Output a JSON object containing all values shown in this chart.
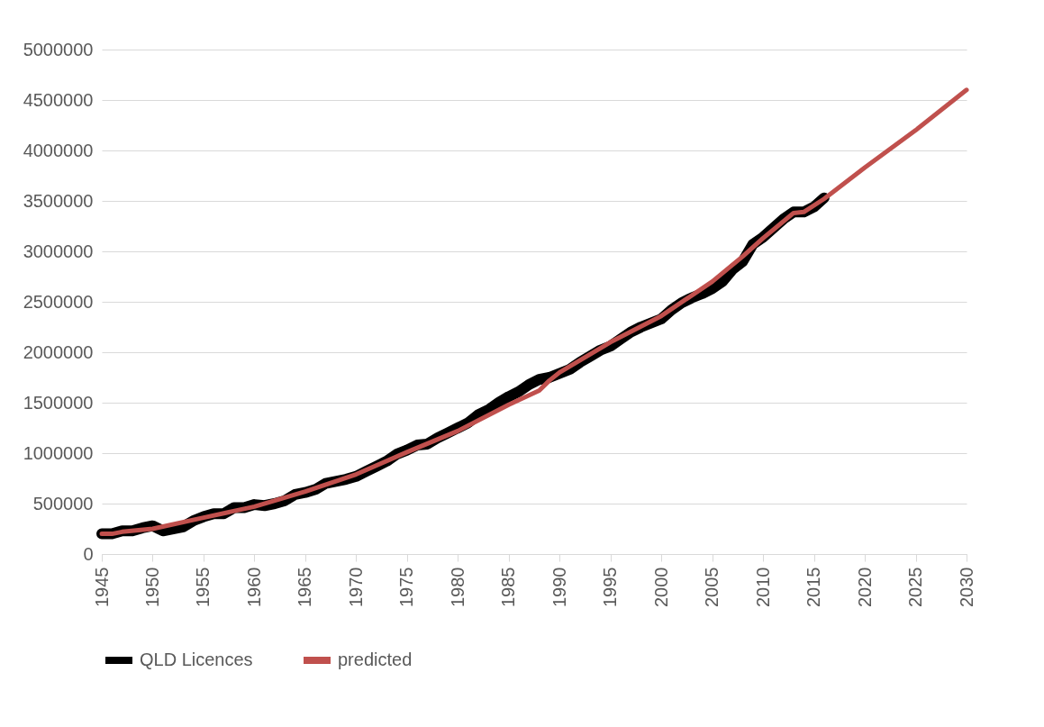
{
  "chart_data": {
    "type": "line",
    "xlim": [
      1945,
      2030
    ],
    "xticks": [
      1945,
      1950,
      1955,
      1960,
      1965,
      1970,
      1975,
      1980,
      1985,
      1990,
      1995,
      2000,
      2005,
      2010,
      2015,
      2020,
      2025,
      2030
    ],
    "ylim": [
      0,
      5000000
    ],
    "yticks": [
      0,
      500000,
      1000000,
      1500000,
      2000000,
      2500000,
      3000000,
      3500000,
      4000000,
      4500000,
      5000000
    ],
    "grid": "y",
    "legend": "bottom",
    "marker": "none",
    "line_style": "solid",
    "series": [
      {
        "name": "QLD Licences",
        "color": "#000000",
        "x": [
          1945,
          1946,
          1947,
          1948,
          1949,
          1950,
          1951,
          1952,
          1953,
          1954,
          1955,
          1956,
          1957,
          1958,
          1959,
          1960,
          1961,
          1962,
          1963,
          1964,
          1965,
          1966,
          1967,
          1968,
          1969,
          1970,
          1971,
          1972,
          1973,
          1974,
          1975,
          1976,
          1977,
          1978,
          1979,
          1980,
          1981,
          1982,
          1983,
          1984,
          1985,
          1986,
          1987,
          1988,
          1989,
          1990,
          1991,
          1992,
          1993,
          1994,
          1995,
          1996,
          1997,
          1998,
          1999,
          2000,
          2001,
          2002,
          2003,
          2004,
          2005,
          2006,
          2007,
          2008,
          2009,
          2010,
          2011,
          2012,
          2013,
          2014,
          2015,
          2016
        ],
        "values": [
          200000,
          200000,
          230000,
          230000,
          260000,
          280000,
          230000,
          250000,
          270000,
          330000,
          370000,
          400000,
          400000,
          460000,
          460000,
          490000,
          480000,
          500000,
          530000,
          590000,
          610000,
          640000,
          700000,
          720000,
          740000,
          770000,
          820000,
          870000,
          920000,
          990000,
          1030000,
          1080000,
          1090000,
          1150000,
          1200000,
          1250000,
          1300000,
          1380000,
          1430000,
          1500000,
          1560000,
          1610000,
          1680000,
          1730000,
          1750000,
          1790000,
          1830000,
          1900000,
          1960000,
          2020000,
          2060000,
          2130000,
          2200000,
          2250000,
          2290000,
          2330000,
          2420000,
          2490000,
          2540000,
          2580000,
          2630000,
          2700000,
          2820000,
          2900000,
          3070000,
          3140000,
          3230000,
          3320000,
          3390000,
          3390000,
          3440000,
          3530000
        ]
      },
      {
        "name": "predicted",
        "color": "#c0504d",
        "x": [
          1945,
          1946,
          1947,
          1950,
          1955,
          1960,
          1965,
          1970,
          1975,
          1980,
          1985,
          1988,
          1989,
          1990,
          1995,
          2000,
          2005,
          2008,
          2010,
          2013,
          2014,
          2016,
          2020,
          2025,
          2030
        ],
        "values": [
          200000,
          200000,
          220000,
          250000,
          360000,
          470000,
          620000,
          790000,
          1010000,
          1220000,
          1480000,
          1620000,
          1720000,
          1800000,
          2100000,
          2360000,
          2700000,
          2950000,
          3130000,
          3380000,
          3390000,
          3520000,
          3830000,
          4200000,
          4600000
        ]
      }
    ]
  }
}
